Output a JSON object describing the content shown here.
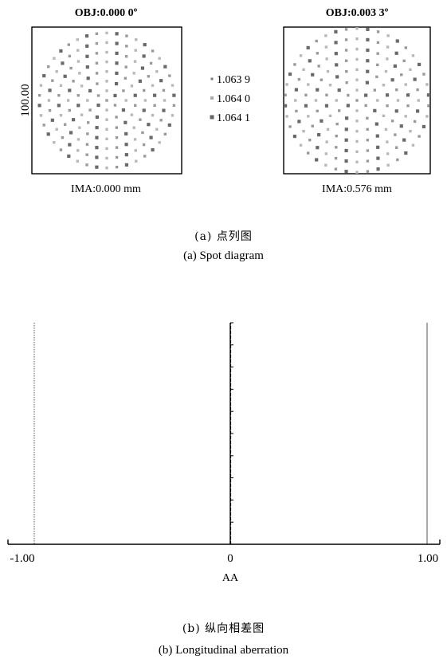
{
  "chart_data": [
    {
      "type": "scatter",
      "name": "spot-diagram",
      "scale_label": "100.00",
      "legend": [
        "1.063 9",
        "1.064 0",
        "1.064 1"
      ],
      "fields": [
        {
          "obj": "OBJ:0.000 0º",
          "ima": "IMA:0.000 mm",
          "pattern": "hexapolar",
          "rings": 7,
          "radius_fraction": 0.92
        },
        {
          "obj": "OBJ:0.003 3º",
          "ima": "IMA:0.576 mm",
          "pattern": "hexapolar",
          "rings": 7,
          "radius_fraction": 0.98
        }
      ]
    },
    {
      "type": "line",
      "name": "longitudinal-aberration",
      "xlabel": "AA",
      "xlim": [
        -1.0,
        1.0
      ],
      "x_ticks": [
        "-1.00",
        "0",
        "1.00"
      ],
      "series": [
        {
          "x": [
            0,
            0
          ],
          "y": [
            0,
            1
          ]
        }
      ]
    }
  ],
  "captions": {
    "a_cn": "(a) 点列图",
    "a_en": "(a) Spot diagram",
    "b_cn": "(b) 纵向相差图",
    "b_en": "(b) Longitudinal aberration"
  }
}
